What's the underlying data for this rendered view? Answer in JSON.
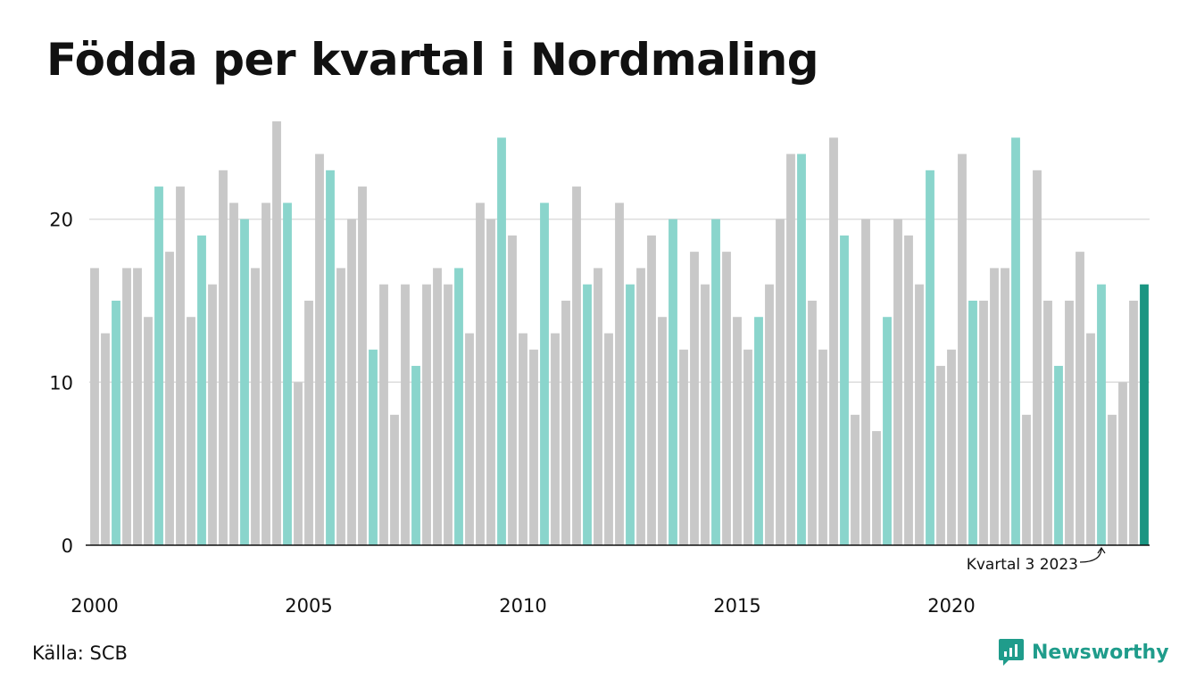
{
  "title": "Födda per kvartal i Nordmaling",
  "source": "Källa: SCB",
  "brand": {
    "name": "Newsworthy",
    "color": "#1f9c8b",
    "icon": "newsworthy-logo-icon"
  },
  "colors": {
    "bar": "#c8c8c8",
    "highlight": "#8ad5cc",
    "latest": "#1a9582",
    "grid": "#dddddd",
    "axis": "#111111"
  },
  "chart_data": {
    "type": "bar",
    "title": "Födda per kvartal i Nordmaling",
    "xlabel": "",
    "ylabel": "",
    "ylim": [
      0,
      26
    ],
    "yticks": [
      0,
      10,
      20
    ],
    "xtick_labels": [
      "2000",
      "2005",
      "2010",
      "2015",
      "2020"
    ],
    "grid": true,
    "annotation": "Kvartal 3 2023",
    "categories": [
      "2000 Q1",
      "2000 Q2",
      "2000 Q3",
      "2000 Q4",
      "2001 Q1",
      "2001 Q2",
      "2001 Q3",
      "2001 Q4",
      "2002 Q1",
      "2002 Q2",
      "2002 Q3",
      "2002 Q4",
      "2003 Q1",
      "2003 Q2",
      "2003 Q3",
      "2003 Q4",
      "2004 Q1",
      "2004 Q2",
      "2004 Q3",
      "2004 Q4",
      "2005 Q1",
      "2005 Q2",
      "2005 Q3",
      "2005 Q4",
      "2006 Q1",
      "2006 Q2",
      "2006 Q3",
      "2006 Q4",
      "2007 Q1",
      "2007 Q2",
      "2007 Q3",
      "2007 Q4",
      "2008 Q1",
      "2008 Q2",
      "2008 Q3",
      "2008 Q4",
      "2009 Q1",
      "2009 Q2",
      "2009 Q3",
      "2009 Q4",
      "2010 Q1",
      "2010 Q2",
      "2010 Q3",
      "2010 Q4",
      "2011 Q1",
      "2011 Q2",
      "2011 Q3",
      "2011 Q4",
      "2012 Q1",
      "2012 Q2",
      "2012 Q3",
      "2012 Q4",
      "2013 Q1",
      "2013 Q2",
      "2013 Q3",
      "2013 Q4",
      "2014 Q1",
      "2014 Q2",
      "2014 Q3",
      "2014 Q4",
      "2015 Q1",
      "2015 Q2",
      "2015 Q3",
      "2015 Q4",
      "2016 Q1",
      "2016 Q2",
      "2016 Q3",
      "2016 Q4",
      "2017 Q1",
      "2017 Q2",
      "2017 Q3",
      "2017 Q4",
      "2018 Q1",
      "2018 Q2",
      "2018 Q3",
      "2018 Q4",
      "2019 Q1",
      "2019 Q2",
      "2019 Q3",
      "2019 Q4",
      "2020 Q1",
      "2020 Q2",
      "2020 Q3",
      "2020 Q4",
      "2021 Q1",
      "2021 Q2",
      "2021 Q3",
      "2021 Q4",
      "2022 Q1",
      "2022 Q2",
      "2022 Q3",
      "2022 Q4",
      "2023 Q1",
      "2023 Q2",
      "2023 Q3",
      "2023 Q4",
      "2024 Q1",
      "2024 Q2",
      "2024 Q3"
    ],
    "values": [
      17,
      13,
      15,
      17,
      17,
      14,
      22,
      18,
      22,
      14,
      19,
      16,
      23,
      21,
      20,
      17,
      21,
      26,
      21,
      10,
      15,
      24,
      23,
      17,
      20,
      22,
      12,
      16,
      8,
      16,
      11,
      16,
      17,
      16,
      17,
      13,
      21,
      20,
      25,
      19,
      13,
      12,
      21,
      13,
      15,
      22,
      16,
      17,
      13,
      21,
      16,
      17,
      19,
      14,
      20,
      12,
      18,
      16,
      20,
      18,
      14,
      12,
      14,
      16,
      20,
      24,
      24,
      15,
      12,
      25,
      19,
      8,
      20,
      7,
      14,
      20,
      19,
      16,
      23,
      11,
      12,
      24,
      15,
      15,
      17,
      17,
      25,
      8,
      23,
      15,
      11,
      15,
      18,
      13,
      16,
      8,
      10,
      15,
      16
    ],
    "highlight_quarter": 3,
    "annotated_category": "2023 Q3",
    "latest_category": "2024 Q3"
  }
}
